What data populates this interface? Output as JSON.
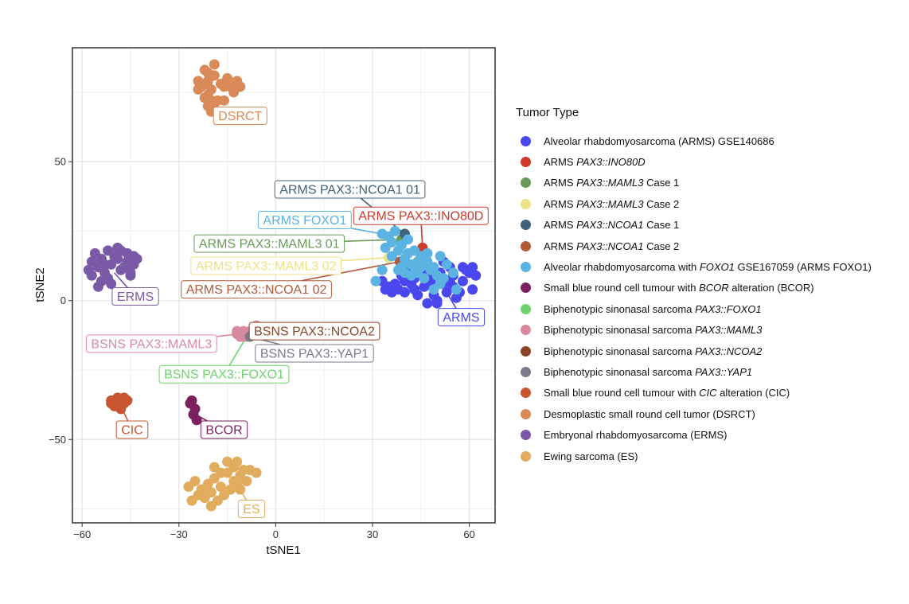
{
  "chart_data": {
    "type": "scatter",
    "title": "",
    "xlabel": "tSNE1",
    "ylabel": "tSNE2",
    "xlim": [
      -63,
      68
    ],
    "ylim": [
      -80,
      91
    ],
    "xticks": [
      -60,
      -30,
      0,
      30,
      60
    ],
    "yticks": [
      -50,
      0,
      50
    ],
    "grid": true,
    "legend_position": "right",
    "legend_title": "Tumor Type",
    "series": [
      {
        "name": "Alveolar rhabdomyosarcoma (ARMS) GSE140686",
        "parts": [
          {
            "t": "Alveolar rhabdomyosarcoma (ARMS) GSE140686"
          }
        ],
        "color": "#4a47ee",
        "points": [
          [
            34,
            4
          ],
          [
            37,
            6
          ],
          [
            40,
            3
          ],
          [
            43,
            8
          ],
          [
            46,
            5
          ],
          [
            49,
            2
          ],
          [
            52,
            6
          ],
          [
            55,
            9
          ],
          [
            58,
            7
          ],
          [
            61,
            4
          ],
          [
            60,
            10
          ],
          [
            57,
            3
          ],
          [
            54,
            12
          ],
          [
            51,
            10
          ],
          [
            48,
            7
          ],
          [
            45,
            11
          ],
          [
            42,
            6
          ],
          [
            39,
            9
          ],
          [
            36,
            3
          ],
          [
            33,
            7
          ],
          [
            44,
            2
          ],
          [
            47,
            -1
          ],
          [
            50,
            0
          ],
          [
            53,
            3
          ],
          [
            56,
            1
          ],
          [
            59,
            11
          ],
          [
            62,
            9
          ],
          [
            41,
            12
          ],
          [
            38,
            4
          ],
          [
            35,
            5
          ],
          [
            50,
            -1
          ],
          [
            55,
            5
          ],
          [
            46,
            13
          ],
          [
            52,
            14
          ],
          [
            58,
            12
          ],
          [
            43,
            4
          ],
          [
            40,
            7
          ],
          [
            47,
            9
          ],
          [
            54,
            7
          ],
          [
            61,
            12
          ]
        ]
      },
      {
        "name": "ARMS PAX3::INO80D",
        "parts": [
          {
            "t": "ARMS "
          },
          {
            "t": "PAX3::INO80D",
            "i": true
          }
        ],
        "color": "#cf3a2c",
        "points": [
          [
            45.5,
            19
          ]
        ]
      },
      {
        "name": "ARMS PAX3::MAML3 Case 1",
        "parts": [
          {
            "t": "ARMS "
          },
          {
            "t": "PAX3::MAML3",
            "i": true
          },
          {
            "t": " Case 1"
          }
        ],
        "color": "#6a9a58",
        "points": [
          [
            39,
            22
          ]
        ]
      },
      {
        "name": "ARMS PAX3::MAML3 Case 2",
        "parts": [
          {
            "t": "ARMS "
          },
          {
            "t": "PAX3::MAML3",
            "i": true
          },
          {
            "t": " Case 2"
          }
        ],
        "color": "#ede288",
        "points": [
          [
            35,
            15.5
          ]
        ]
      },
      {
        "name": "ARMS PAX3::NCOA1 Case 1",
        "parts": [
          {
            "t": "ARMS "
          },
          {
            "t": "PAX3::NCOA1",
            "i": true
          },
          {
            "t": " Case 1"
          }
        ],
        "color": "#3f6179",
        "points": [
          [
            40,
            24
          ]
        ]
      },
      {
        "name": "ARMS PAX3::NCOA1 Case 2",
        "parts": [
          {
            "t": "ARMS "
          },
          {
            "t": "PAX3::NCOA1",
            "i": true
          },
          {
            "t": " Case 2"
          }
        ],
        "color": "#b05a3a",
        "points": [
          [
            38.5,
            14
          ]
        ]
      },
      {
        "name": "Alveolar rhabdomyosarcoma with FOXO1 GSE167059 (ARMS FOXO1)",
        "parts": [
          {
            "t": "Alveolar rhabdomyosarcoma with "
          },
          {
            "t": "FOXO1",
            "i": true
          },
          {
            "t": " GSE167059 (ARMS FOXO1)"
          }
        ],
        "color": "#5ab3e0",
        "points": [
          [
            33,
            24
          ],
          [
            35,
            23
          ],
          [
            37,
            25
          ],
          [
            39,
            20
          ],
          [
            41,
            22
          ],
          [
            43,
            18
          ],
          [
            45,
            16
          ],
          [
            47,
            14
          ],
          [
            49,
            12
          ],
          [
            51,
            16
          ],
          [
            53,
            13
          ],
          [
            42,
            13
          ],
          [
            40,
            15
          ],
          [
            38,
            18
          ],
          [
            36,
            21
          ],
          [
            34,
            19
          ],
          [
            44,
            10
          ],
          [
            46,
            8
          ],
          [
            48,
            11
          ],
          [
            50,
            9
          ],
          [
            55,
            10
          ],
          [
            52,
            8
          ],
          [
            44,
            14
          ],
          [
            41,
            17
          ],
          [
            39,
            12
          ],
          [
            42,
            9
          ],
          [
            47,
            17
          ],
          [
            36,
            16
          ],
          [
            33,
            11
          ],
          [
            31,
            7
          ],
          [
            38,
            11
          ],
          [
            45,
            12
          ],
          [
            51,
            6
          ],
          [
            49,
            4
          ],
          [
            56,
            4
          ],
          [
            43,
            12
          ],
          [
            40,
            10
          ]
        ]
      },
      {
        "name": "Small blue round cell tumour with BCOR alteration (BCOR)",
        "parts": [
          {
            "t": "Small blue round cell tumour with "
          },
          {
            "t": "BCOR",
            "i": true
          },
          {
            "t": " alteration (BCOR)"
          }
        ],
        "color": "#7b2160",
        "points": [
          [
            -26.5,
            -37
          ],
          [
            -25,
            -39
          ],
          [
            -25.5,
            -41
          ],
          [
            -24.5,
            -43
          ],
          [
            -26,
            -36
          ]
        ]
      },
      {
        "name": "Biphenotypic sinonasal sarcoma PAX3::FOXO1",
        "parts": [
          {
            "t": "Biphenotypic sinonasal sarcoma "
          },
          {
            "t": "PAX3::FOXO1",
            "i": true
          }
        ],
        "color": "#6dd36d",
        "points": [
          [
            -9,
            -13
          ]
        ]
      },
      {
        "name": "Biphenotypic sinonasal sarcoma PAX3::MAML3",
        "parts": [
          {
            "t": "Biphenotypic sinonasal sarcoma "
          },
          {
            "t": "PAX3::MAML3",
            "i": true
          }
        ],
        "color": "#d9899f",
        "points": [
          [
            -11,
            -12
          ],
          [
            -10,
            -11
          ],
          [
            -12,
            -12
          ],
          [
            -10,
            -13
          ],
          [
            -8,
            -11
          ],
          [
            -11,
            -13
          ],
          [
            -9,
            -12
          ],
          [
            -12,
            -11
          ],
          [
            -6,
            -9
          ],
          [
            -10,
            -12
          ]
        ]
      },
      {
        "name": "Biphenotypic sinonasal sarcoma PAX3::NCOA2",
        "parts": [
          {
            "t": "Biphenotypic sinonasal sarcoma "
          },
          {
            "t": "PAX3::NCOA2",
            "i": true
          }
        ],
        "color": "#8a4526",
        "points": [
          [
            -5.5,
            -11.5
          ]
        ]
      },
      {
        "name": "Biphenotypic sinonasal sarcoma PAX3::YAP1",
        "parts": [
          {
            "t": "Biphenotypic sinonasal sarcoma "
          },
          {
            "t": "PAX3::YAP1",
            "i": true
          }
        ],
        "color": "#7b7b8c",
        "points": [
          [
            -8,
            -13
          ]
        ]
      },
      {
        "name": "Small blue round cell tumour with CIC alteration (CIC)",
        "parts": [
          {
            "t": "Small blue round cell tumour with "
          },
          {
            "t": "CIC",
            "i": true
          },
          {
            "t": " alteration (CIC)"
          }
        ],
        "color": "#c95530",
        "points": [
          [
            -51,
            -36
          ],
          [
            -49,
            -35
          ],
          [
            -47,
            -37
          ],
          [
            -50,
            -38
          ],
          [
            -48,
            -39
          ],
          [
            -46,
            -36
          ],
          [
            -49,
            -37
          ],
          [
            -47,
            -35
          ],
          [
            -51,
            -37
          ],
          [
            -48,
            -36
          ]
        ]
      },
      {
        "name": "Desmoplastic small round cell tumor (DSRCT)",
        "parts": [
          {
            "t": "Desmoplastic small round cell tumor (DSRCT)"
          }
        ],
        "color": "#d98a58",
        "points": [
          [
            -24,
            79
          ],
          [
            -22,
            83
          ],
          [
            -21,
            79
          ],
          [
            -20,
            76
          ],
          [
            -22,
            73
          ],
          [
            -21,
            70
          ],
          [
            -20,
            72
          ],
          [
            -23,
            77
          ],
          [
            -19,
            81
          ],
          [
            -21,
            82
          ],
          [
            -17,
            78
          ],
          [
            -16,
            77
          ],
          [
            -15,
            80
          ],
          [
            -14,
            77
          ],
          [
            -13,
            75
          ],
          [
            -12,
            79
          ],
          [
            -11,
            77
          ],
          [
            -18,
            72
          ],
          [
            -19,
            71
          ],
          [
            -20,
            68
          ],
          [
            -21,
            74
          ],
          [
            -16,
            72
          ],
          [
            -24,
            76
          ],
          [
            -19,
            85
          ]
        ]
      },
      {
        "name": "Embryonal rhabdomyosarcoma (ERMS)",
        "parts": [
          {
            "t": "Embryonal rhabdomyosarcoma (ERMS)"
          }
        ],
        "color": "#7a5aa6",
        "points": [
          [
            -58,
            11
          ],
          [
            -57,
            14
          ],
          [
            -55,
            12
          ],
          [
            -53,
            10
          ],
          [
            -51,
            13
          ],
          [
            -49,
            15
          ],
          [
            -47,
            12
          ],
          [
            -45,
            10
          ],
          [
            -44,
            13
          ],
          [
            -46,
            17
          ],
          [
            -48,
            18
          ],
          [
            -50,
            16
          ],
          [
            -52,
            18
          ],
          [
            -54,
            15
          ],
          [
            -56,
            17
          ],
          [
            -57,
            9
          ],
          [
            -54,
            7
          ],
          [
            -52,
            8
          ],
          [
            -48,
            11
          ],
          [
            -46,
            14
          ],
          [
            -44,
            16
          ],
          [
            -43,
            15
          ],
          [
            -55,
            5
          ],
          [
            -51,
            6
          ],
          [
            -49,
            19
          ],
          [
            -45,
            9
          ],
          [
            -53,
            13
          ]
        ]
      },
      {
        "name": "Ewing sarcoma (ES)",
        "parts": [
          {
            "t": "Ewing sarcoma (ES)"
          }
        ],
        "color": "#e2ac5e",
        "points": [
          [
            -27,
            -67
          ],
          [
            -25,
            -65
          ],
          [
            -23,
            -68
          ],
          [
            -21,
            -66
          ],
          [
            -19,
            -64
          ],
          [
            -17,
            -67
          ],
          [
            -15,
            -62
          ],
          [
            -13,
            -60
          ],
          [
            -11,
            -63
          ],
          [
            -9,
            -65
          ],
          [
            -8,
            -61
          ],
          [
            -6,
            -62
          ],
          [
            -16,
            -70
          ],
          [
            -18,
            -72
          ],
          [
            -20,
            -69
          ],
          [
            -22,
            -71
          ],
          [
            -24,
            -70
          ],
          [
            -14,
            -68
          ],
          [
            -12,
            -66
          ],
          [
            -10,
            -61
          ],
          [
            -15,
            -58
          ],
          [
            -12,
            -58
          ],
          [
            -19,
            -60
          ],
          [
            -17,
            -62
          ],
          [
            -26,
            -72
          ],
          [
            -13,
            -65
          ],
          [
            -11,
            -68
          ],
          [
            -20,
            -74
          ]
        ]
      }
    ],
    "labels": [
      {
        "text": "DSRCT",
        "color": "#d98a58",
        "box": [
          -11,
          66.5
        ],
        "anchor": [
          -16,
          71
        ]
      },
      {
        "text": "ARMS PAX3::NCOA1 01",
        "color": "#3f6179",
        "box": [
          23,
          40
        ],
        "anchor": [
          40,
          24
        ]
      },
      {
        "text": "ARMS FOXO1",
        "color": "#5ab3e0",
        "box": [
          9,
          29
        ],
        "anchor": [
          33,
          24
        ]
      },
      {
        "text": "ARMS PAX3::INO80D",
        "color": "#cf3a2c",
        "box": [
          45,
          30.5
        ],
        "anchor": [
          45.5,
          19
        ]
      },
      {
        "text": "ARMS PAX3::MAML3 01",
        "color": "#6a9a58",
        "box": [
          -2,
          20.5
        ],
        "anchor": [
          39,
          22
        ]
      },
      {
        "text": "ERMS",
        "color": "#7a5aa6",
        "box": [
          -43.5,
          1.5
        ],
        "anchor": [
          -50,
          10
        ]
      },
      {
        "text": "ARMS PAX3::MAML3 02",
        "color": "#ede288",
        "box": [
          -3,
          12.5
        ],
        "anchor": [
          35,
          15.5
        ]
      },
      {
        "text": "ARMS PAX3::NCOA1 02",
        "color": "#b05a3a",
        "box": [
          -6,
          4
        ],
        "anchor": [
          38.5,
          14
        ]
      },
      {
        "text": "ARMS",
        "color": "#4a47ee",
        "box": [
          57.5,
          -6
        ],
        "anchor": [
          53,
          3
        ]
      },
      {
        "text": "BSNS PAX3::NCOA2",
        "color": "#8a4526",
        "box": [
          12,
          -11
        ],
        "anchor": [
          -5.5,
          -11.5
        ]
      },
      {
        "text": "BSNS PAX3::MAML3",
        "color": "#d9899f",
        "box": [
          -38.5,
          -15.5
        ],
        "anchor": [
          -11,
          -12
        ]
      },
      {
        "text": "BSNS PAX3::YAP1",
        "color": "#7b7b8c",
        "box": [
          12,
          -19
        ],
        "anchor": [
          -8,
          -13
        ]
      },
      {
        "text": "BSNS PAX3::FOXO1",
        "color": "#6dd36d",
        "box": [
          -16,
          -26.5
        ],
        "anchor": [
          -9,
          -13
        ]
      },
      {
        "text": "CIC",
        "color": "#c95530",
        "box": [
          -44.5,
          -46.5
        ],
        "anchor": [
          -48,
          -38
        ]
      },
      {
        "text": "BCOR",
        "color": "#7b2160",
        "box": [
          -16,
          -46.5
        ],
        "anchor": [
          -25,
          -41
        ]
      },
      {
        "text": "ES",
        "color": "#e2ac5e",
        "box": [
          -7.5,
          -75
        ],
        "anchor": [
          -12,
          -66
        ]
      }
    ]
  }
}
